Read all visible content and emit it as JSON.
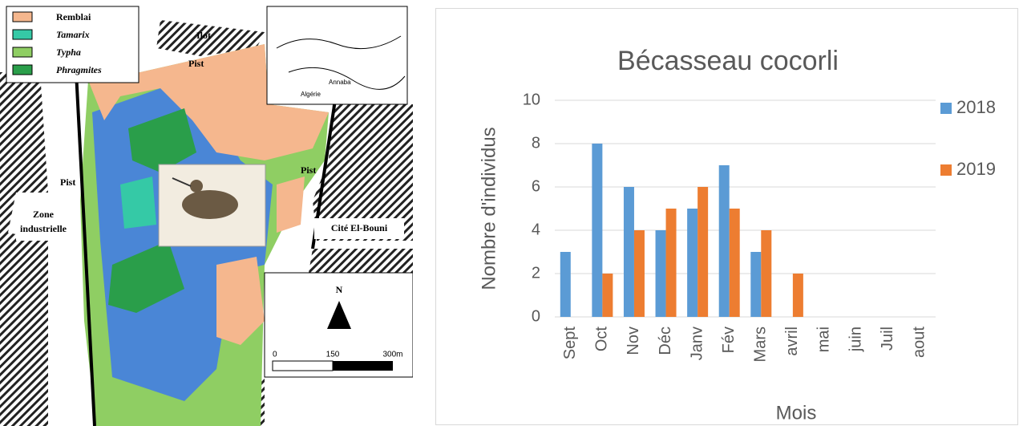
{
  "map": {
    "legend": [
      "Remblai",
      "Tamarix",
      "Typha",
      "Phragmites"
    ],
    "labels": {
      "ilot": "Ilot",
      "pist": "Pist",
      "zone": [
        "Zone",
        "industrielle"
      ],
      "cite": "Cité El-Bouni",
      "north": "N"
    },
    "scale": [
      "0",
      "150",
      "300m"
    ],
    "inset": [
      "Annaba",
      "Algérie"
    ]
  },
  "chart_data": {
    "type": "bar",
    "title": "Bécasseau cocorli",
    "x_label": "Mois",
    "y_label": "Nombre d'individus",
    "categories": [
      "Sept",
      "Oct",
      "Nov",
      "Déc",
      "Janv",
      "Fév",
      "Mars",
      "avril",
      "mai",
      "juin",
      "Juil",
      "aout"
    ],
    "series": [
      {
        "name": "2018",
        "color": "#5b9bd5",
        "values": [
          3,
          8,
          6,
          4,
          5,
          7,
          3,
          0,
          0,
          0,
          0,
          0
        ]
      },
      {
        "name": "2019",
        "color": "#ed7d31",
        "values": [
          0,
          2,
          4,
          5,
          6,
          5,
          4,
          2,
          0,
          0,
          0,
          0
        ]
      }
    ],
    "ylim": [
      0,
      10
    ],
    "yticks": [
      0,
      2,
      4,
      6,
      8,
      10
    ],
    "grid": true,
    "legend": "right"
  }
}
